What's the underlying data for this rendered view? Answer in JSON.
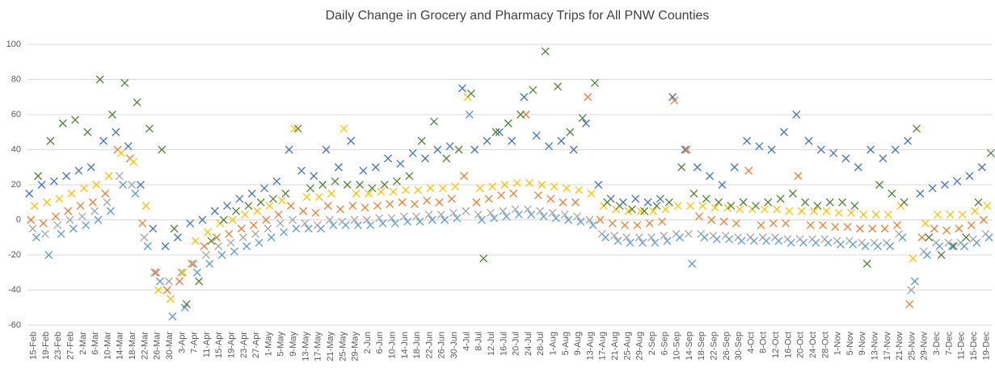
{
  "chart_data": {
    "type": "scatter",
    "title": "Daily Change in Grocery and Pharmacy Trips for All PNW Counties",
    "categories": [
      "15-Feb",
      "19-Feb",
      "23-Feb",
      "27-Feb",
      "2-Mar",
      "6-Mar",
      "10-Mar",
      "14-Mar",
      "18-Mar",
      "22-Mar",
      "26-Mar",
      "30-Mar",
      "3-Apr",
      "7-Apr",
      "11-Apr",
      "15-Apr",
      "19-Apr",
      "23-Apr",
      "27-Apr",
      "1-May",
      "5-May",
      "9-May",
      "13-May",
      "17-May",
      "21-May",
      "25-May",
      "29-May",
      "2-Jun",
      "6-Jun",
      "10-Jun",
      "14-Jun",
      "18-Jun",
      "22-Jun",
      "26-Jun",
      "30-Jun",
      "4-Jul",
      "8-Jul",
      "12-Jul",
      "16-Jul",
      "20-Jul",
      "24-Jul",
      "28-Jul",
      "1-Aug",
      "5-Aug",
      "9-Aug",
      "13-Aug",
      "17-Aug",
      "21-Aug",
      "25-Aug",
      "29-Aug",
      "2-Sep",
      "6-Sep",
      "10-Sep",
      "14-Sep",
      "18-Sep",
      "22-Sep",
      "26-Sep",
      "30-Sep",
      "4-Oct",
      "8-Oct",
      "12-Oct",
      "16-Oct",
      "20-Oct",
      "24-Oct",
      "28-Oct",
      "1-Nov",
      "5-Nov",
      "9-Nov",
      "13-Nov",
      "17-Nov",
      "21-Nov",
      "25-Nov",
      "29-Nov",
      "3-Dec",
      "7-Dec",
      "11-Dec",
      "15-Dec",
      "19-Dec"
    ],
    "series": [
      {
        "color": "#4472c4",
        "values": [
          15,
          20,
          22,
          25,
          28,
          30,
          45,
          50,
          42,
          20,
          -5,
          -15,
          -10,
          -2,
          0,
          5,
          8,
          12,
          15,
          18,
          22,
          40,
          28,
          25,
          40,
          30,
          45,
          28,
          30,
          35,
          32,
          38,
          35,
          40,
          42,
          75,
          40,
          45,
          50,
          45,
          70,
          48,
          42,
          45,
          40,
          55,
          20,
          12,
          10,
          12,
          10,
          12,
          70,
          40,
          30,
          25,
          20,
          30,
          45,
          42,
          40,
          50,
          60,
          45,
          40,
          38,
          35,
          30,
          40,
          35,
          40,
          45,
          15,
          18,
          20,
          22,
          25,
          30
        ]
      },
      {
        "color": "#ed7d31",
        "values": [
          0,
          -2,
          2,
          5,
          8,
          10,
          15,
          40,
          35,
          -2,
          -30,
          -40,
          -35,
          -25,
          -15,
          -10,
          -8,
          -5,
          -3,
          0,
          3,
          8,
          5,
          4,
          8,
          6,
          8,
          7,
          8,
          9,
          10,
          9,
          11,
          10,
          12,
          25,
          10,
          12,
          14,
          15,
          60,
          14,
          12,
          10,
          10,
          70,
          0,
          -2,
          -3,
          -3,
          -2,
          -1,
          68,
          40,
          2,
          0,
          -1,
          -2,
          28,
          -3,
          -2,
          -2,
          25,
          -3,
          -3,
          -4,
          -4,
          -5,
          -5,
          -5,
          -3,
          -48,
          -10,
          -5,
          -6,
          -5,
          -3,
          0
        ]
      },
      {
        "color": "#a5a5a5",
        "values": [
          -5,
          -8,
          -3,
          0,
          2,
          5,
          10,
          25,
          20,
          -10,
          -30,
          -35,
          -30,
          -25,
          -20,
          -15,
          -13,
          -10,
          -8,
          -5,
          -2,
          0,
          -2,
          -3,
          0,
          -1,
          0,
          0,
          1,
          1,
          2,
          2,
          3,
          3,
          4,
          5,
          3,
          4,
          5,
          6,
          6,
          5,
          4,
          3,
          2,
          0,
          -8,
          -9,
          -10,
          -10,
          -10,
          -9,
          -8,
          -8,
          -8,
          -9,
          -9,
          -10,
          -10,
          -10,
          -10,
          -11,
          -11,
          -11,
          -11,
          -12,
          -12,
          -13,
          -13,
          -13,
          -8,
          -40,
          -18,
          -13,
          -13,
          -13,
          -11,
          -8
        ]
      },
      {
        "color": "#ffc000",
        "values": [
          8,
          10,
          12,
          15,
          18,
          20,
          25,
          38,
          33,
          8,
          -40,
          -45,
          -30,
          -12,
          -7,
          -2,
          0,
          3,
          5,
          8,
          11,
          52,
          13,
          13,
          15,
          52,
          15,
          15,
          16,
          16,
          17,
          17,
          18,
          18,
          19,
          70,
          18,
          19,
          20,
          21,
          21,
          20,
          19,
          18,
          17,
          15,
          8,
          6,
          5,
          5,
          5,
          6,
          8,
          8,
          8,
          7,
          7,
          6,
          6,
          6,
          6,
          5,
          5,
          5,
          5,
          4,
          4,
          3,
          3,
          3,
          8,
          -22,
          -2,
          3,
          3,
          3,
          5,
          8
        ]
      },
      {
        "color": "#5b9bd5",
        "values": [
          -10,
          -20,
          -8,
          -5,
          -3,
          0,
          5,
          20,
          15,
          -15,
          -35,
          -55,
          -50,
          -30,
          -25,
          -20,
          -18,
          -15,
          -13,
          -10,
          -7,
          -5,
          -5,
          -5,
          -3,
          -3,
          -3,
          -3,
          -2,
          -2,
          -1,
          -1,
          0,
          0,
          1,
          60,
          0,
          1,
          2,
          3,
          3,
          2,
          1,
          0,
          -1,
          -3,
          -10,
          -12,
          -13,
          -13,
          -13,
          -12,
          -10,
          -25,
          -10,
          -11,
          -11,
          -12,
          -12,
          -12,
          -12,
          -13,
          -13,
          -13,
          -13,
          -14,
          -14,
          -15,
          -15,
          -15,
          -10,
          -35,
          -20,
          -15,
          -15,
          -15,
          -13,
          -10
        ]
      },
      {
        "color": "#548235",
        "values": [
          25,
          45,
          55,
          57,
          50,
          80,
          60,
          78,
          67,
          52,
          40,
          -5,
          -48,
          -35,
          -12,
          0,
          5,
          8,
          10,
          12,
          15,
          52,
          18,
          20,
          22,
          20,
          20,
          18,
          20,
          22,
          25,
          45,
          56,
          35,
          40,
          72,
          -22,
          50,
          55,
          60,
          74,
          96,
          76,
          50,
          58,
          78,
          10,
          8,
          6,
          5,
          8,
          10,
          30,
          15,
          12,
          10,
          8,
          10,
          8,
          10,
          12,
          15,
          10,
          8,
          10,
          10,
          8,
          -25,
          20,
          15,
          10,
          52,
          -10,
          -20,
          -15,
          -10,
          10,
          38
        ]
      }
    ],
    "ylim": [
      -60,
      100
    ],
    "yticks": [
      -60,
      -40,
      -20,
      0,
      20,
      40,
      60,
      80,
      100
    ],
    "grid": true
  }
}
